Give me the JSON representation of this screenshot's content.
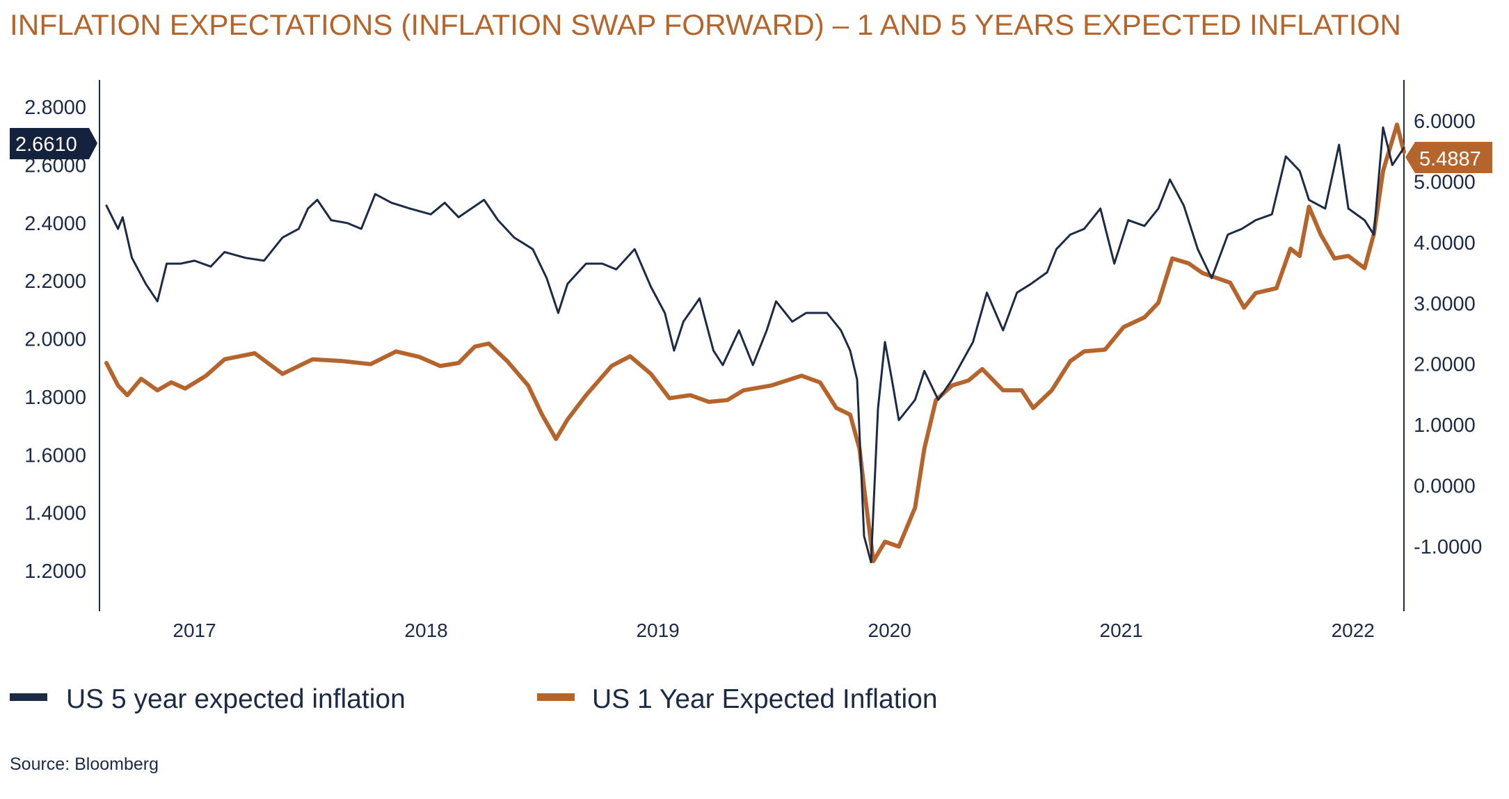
{
  "chart_data": {
    "type": "line",
    "title": "INFLATION EXPECTATIONS (INFLATION SWAP FORWARD) – 1 AND 5 YEARS EXPECTED INFLATION",
    "source": "Source: Bloomberg",
    "xlim": [
      2016.59,
      2022.22
    ],
    "x_ticks": [
      "2017",
      "2018",
      "2019",
      "2020",
      "2021",
      "2022"
    ],
    "y_left": {
      "lim": [
        1.1,
        2.9
      ],
      "ticks": [
        "2.8000",
        "2.6000",
        "2.4000",
        "2.2000",
        "2.0000",
        "1.8000",
        "1.6000",
        "1.4000",
        "1.2000"
      ]
    },
    "y_right": {
      "lim": [
        -2.0,
        6.6
      ],
      "ticks": [
        "6.0000",
        "5.0000",
        "4.0000",
        "3.0000",
        "2.0000",
        "1.0000",
        "0.0000",
        "-1.0000"
      ]
    },
    "grid": false,
    "legend_placement": "bottom",
    "series": [
      {
        "name": "US 5 year expected inflation",
        "axis": "left",
        "color": "#1b2a45",
        "last_value_label": "2.6610",
        "points": [
          [
            2016.62,
            2.46
          ],
          [
            2016.67,
            2.38
          ],
          [
            2016.69,
            2.42
          ],
          [
            2016.73,
            2.28
          ],
          [
            2016.79,
            2.19
          ],
          [
            2016.84,
            2.13
          ],
          [
            2016.88,
            2.26
          ],
          [
            2016.94,
            2.26
          ],
          [
            2017.0,
            2.27
          ],
          [
            2017.07,
            2.25
          ],
          [
            2017.13,
            2.3
          ],
          [
            2017.22,
            2.28
          ],
          [
            2017.3,
            2.27
          ],
          [
            2017.38,
            2.35
          ],
          [
            2017.45,
            2.38
          ],
          [
            2017.49,
            2.45
          ],
          [
            2017.53,
            2.48
          ],
          [
            2017.59,
            2.41
          ],
          [
            2017.66,
            2.4
          ],
          [
            2017.72,
            2.38
          ],
          [
            2017.78,
            2.5
          ],
          [
            2017.85,
            2.47
          ],
          [
            2017.93,
            2.45
          ],
          [
            2018.02,
            2.43
          ],
          [
            2018.08,
            2.47
          ],
          [
            2018.14,
            2.42
          ],
          [
            2018.25,
            2.48
          ],
          [
            2018.31,
            2.41
          ],
          [
            2018.38,
            2.35
          ],
          [
            2018.46,
            2.31
          ],
          [
            2018.52,
            2.21
          ],
          [
            2018.57,
            2.09
          ],
          [
            2018.61,
            2.19
          ],
          [
            2018.69,
            2.26
          ],
          [
            2018.76,
            2.26
          ],
          [
            2018.82,
            2.24
          ],
          [
            2018.9,
            2.31
          ],
          [
            2018.97,
            2.18
          ],
          [
            2019.03,
            2.09
          ],
          [
            2019.07,
            1.96
          ],
          [
            2019.11,
            2.06
          ],
          [
            2019.18,
            2.14
          ],
          [
            2019.24,
            1.96
          ],
          [
            2019.28,
            1.91
          ],
          [
            2019.35,
            2.03
          ],
          [
            2019.41,
            1.91
          ],
          [
            2019.47,
            2.03
          ],
          [
            2019.51,
            2.13
          ],
          [
            2019.58,
            2.06
          ],
          [
            2019.64,
            2.09
          ],
          [
            2019.73,
            2.09
          ],
          [
            2019.79,
            2.03
          ],
          [
            2019.83,
            1.96
          ],
          [
            2019.86,
            1.86
          ],
          [
            2019.89,
            1.32
          ],
          [
            2019.92,
            1.23
          ],
          [
            2019.95,
            1.76
          ],
          [
            2019.98,
            1.99
          ],
          [
            2020.01,
            1.86
          ],
          [
            2020.04,
            1.72
          ],
          [
            2020.11,
            1.79
          ],
          [
            2020.15,
            1.89
          ],
          [
            2020.21,
            1.79
          ],
          [
            2020.27,
            1.86
          ],
          [
            2020.36,
            1.99
          ],
          [
            2020.42,
            2.16
          ],
          [
            2020.49,
            2.03
          ],
          [
            2020.55,
            2.16
          ],
          [
            2020.61,
            2.19
          ],
          [
            2020.68,
            2.23
          ],
          [
            2020.72,
            2.31
          ],
          [
            2020.78,
            2.36
          ],
          [
            2020.84,
            2.38
          ],
          [
            2020.91,
            2.45
          ],
          [
            2020.97,
            2.26
          ],
          [
            2021.03,
            2.41
          ],
          [
            2021.1,
            2.39
          ],
          [
            2021.16,
            2.45
          ],
          [
            2021.21,
            2.55
          ],
          [
            2021.27,
            2.46
          ],
          [
            2021.33,
            2.31
          ],
          [
            2021.39,
            2.21
          ],
          [
            2021.46,
            2.36
          ],
          [
            2021.52,
            2.38
          ],
          [
            2021.58,
            2.41
          ],
          [
            2021.65,
            2.43
          ],
          [
            2021.71,
            2.63
          ],
          [
            2021.77,
            2.58
          ],
          [
            2021.81,
            2.48
          ],
          [
            2021.88,
            2.45
          ],
          [
            2021.94,
            2.67
          ],
          [
            2021.98,
            2.45
          ],
          [
            2022.05,
            2.41
          ],
          [
            2022.09,
            2.36
          ],
          [
            2022.13,
            2.73
          ],
          [
            2022.17,
            2.6
          ],
          [
            2022.22,
            2.66
          ]
        ]
      },
      {
        "name": "US 1 Year Expected Inflation",
        "axis": "right",
        "color": "#b5652c",
        "last_value_label": "5.4887",
        "points": [
          [
            2016.62,
            2.02
          ],
          [
            2016.67,
            1.65
          ],
          [
            2016.71,
            1.49
          ],
          [
            2016.77,
            1.76
          ],
          [
            2016.84,
            1.57
          ],
          [
            2016.9,
            1.7
          ],
          [
            2016.96,
            1.6
          ],
          [
            2017.05,
            1.81
          ],
          [
            2017.13,
            2.08
          ],
          [
            2017.26,
            2.18
          ],
          [
            2017.38,
            1.84
          ],
          [
            2017.51,
            2.08
          ],
          [
            2017.64,
            2.05
          ],
          [
            2017.76,
            2.0
          ],
          [
            2017.87,
            2.21
          ],
          [
            2017.97,
            2.12
          ],
          [
            2018.06,
            1.97
          ],
          [
            2018.14,
            2.02
          ],
          [
            2018.21,
            2.29
          ],
          [
            2018.27,
            2.34
          ],
          [
            2018.35,
            2.05
          ],
          [
            2018.44,
            1.65
          ],
          [
            2018.5,
            1.17
          ],
          [
            2018.56,
            0.77
          ],
          [
            2018.61,
            1.09
          ],
          [
            2018.69,
            1.49
          ],
          [
            2018.8,
            1.97
          ],
          [
            2018.88,
            2.13
          ],
          [
            2018.97,
            1.84
          ],
          [
            2019.05,
            1.44
          ],
          [
            2019.14,
            1.49
          ],
          [
            2019.22,
            1.38
          ],
          [
            2019.3,
            1.41
          ],
          [
            2019.37,
            1.57
          ],
          [
            2019.49,
            1.65
          ],
          [
            2019.62,
            1.81
          ],
          [
            2019.7,
            1.7
          ],
          [
            2019.77,
            1.28
          ],
          [
            2019.83,
            1.17
          ],
          [
            2019.87,
            0.61
          ],
          [
            2019.89,
            -0.04
          ],
          [
            2019.93,
            -1.24
          ],
          [
            2019.98,
            -0.92
          ],
          [
            2020.04,
            -1.0
          ],
          [
            2020.11,
            -0.36
          ],
          [
            2020.15,
            0.61
          ],
          [
            2020.2,
            1.41
          ],
          [
            2020.27,
            1.65
          ],
          [
            2020.34,
            1.73
          ],
          [
            2020.4,
            1.92
          ],
          [
            2020.49,
            1.57
          ],
          [
            2020.57,
            1.57
          ],
          [
            2020.62,
            1.28
          ],
          [
            2020.7,
            1.57
          ],
          [
            2020.78,
            2.05
          ],
          [
            2020.84,
            2.21
          ],
          [
            2020.93,
            2.24
          ],
          [
            2021.01,
            2.61
          ],
          [
            2021.1,
            2.77
          ],
          [
            2021.16,
            3.01
          ],
          [
            2021.22,
            3.74
          ],
          [
            2021.29,
            3.66
          ],
          [
            2021.35,
            3.5
          ],
          [
            2021.41,
            3.42
          ],
          [
            2021.47,
            3.34
          ],
          [
            2021.53,
            2.93
          ],
          [
            2021.58,
            3.17
          ],
          [
            2021.67,
            3.25
          ],
          [
            2021.73,
            3.9
          ],
          [
            2021.77,
            3.78
          ],
          [
            2021.81,
            4.59
          ],
          [
            2021.86,
            4.14
          ],
          [
            2021.92,
            3.74
          ],
          [
            2021.98,
            3.78
          ],
          [
            2022.05,
            3.58
          ],
          [
            2022.09,
            4.14
          ],
          [
            2022.13,
            5.18
          ],
          [
            2022.19,
            5.94
          ],
          [
            2022.22,
            5.49
          ]
        ]
      }
    ]
  }
}
